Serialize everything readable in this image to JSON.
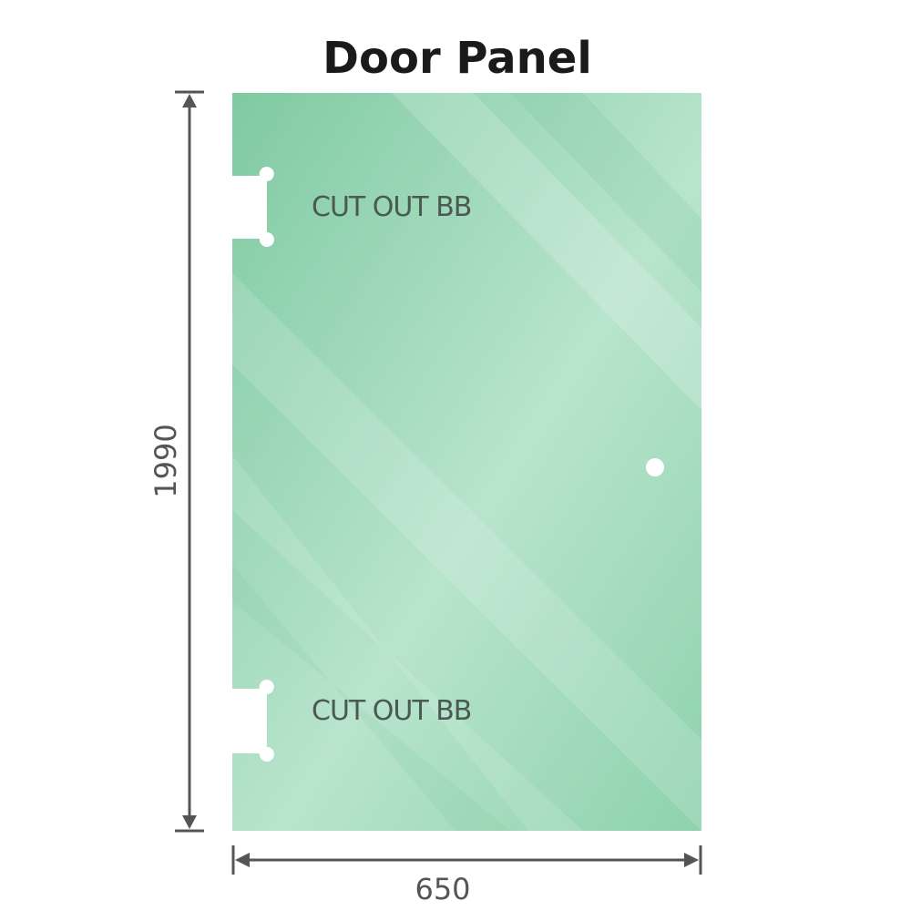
{
  "title": "Door Panel",
  "panel": {
    "color": "#86cfa8",
    "cutouts": [
      {
        "label": "CUT OUT BB"
      },
      {
        "label": "CUT OUT BB"
      }
    ]
  },
  "dimensions": {
    "height": "1990",
    "width": "650"
  }
}
